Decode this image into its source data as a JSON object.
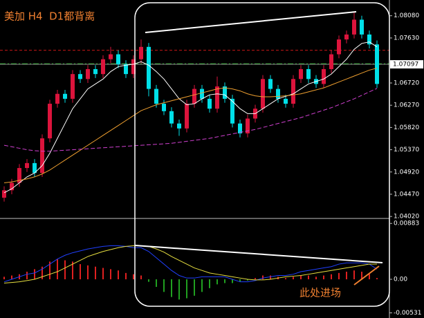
{
  "chart_data": [
    {
      "type": "candlestick",
      "title": "美加 H4  D1都背离",
      "ylim": [
        1.0398,
        1.0837
      ],
      "yticks": [
        {
          "value": 1.0808,
          "label": "1.08080"
        },
        {
          "value": 1.0763,
          "label": "1.07630"
        },
        {
          "value": 1.0672,
          "label": "1.06720"
        },
        {
          "value": 1.0627,
          "label": "1.06270"
        },
        {
          "value": 1.0582,
          "label": "1.05820"
        },
        {
          "value": 1.0537,
          "label": "1.05370"
        },
        {
          "value": 1.0492,
          "label": "1.04920"
        },
        {
          "value": 1.0447,
          "label": "1.04470"
        },
        {
          "value": 1.0402,
          "label": "1.04020"
        }
      ],
      "current_price": 1.07097,
      "levels": [
        {
          "value": 1.0738,
          "color": "#d01818"
        },
        {
          "value": 1.0711,
          "color": "#20a020"
        }
      ],
      "up_color": "#dc143c",
      "down_color": "#00e0e8",
      "candles": {
        "open": [
          1.044,
          1.0455,
          1.047,
          1.05,
          1.051,
          1.049,
          1.056,
          1.063,
          1.065,
          1.064,
          1.069,
          1.068,
          1.07,
          1.069,
          1.072,
          1.073,
          1.071,
          1.069,
          1.072,
          1.0745,
          1.066,
          1.063,
          1.0615,
          1.059,
          1.058,
          1.063,
          1.066,
          1.064,
          1.062,
          1.0665,
          1.064,
          1.059,
          1.057,
          1.06,
          1.062,
          1.068,
          1.066,
          1.064,
          1.063,
          1.068,
          1.07,
          1.068,
          1.067,
          1.07,
          1.073,
          1.076,
          1.077,
          1.08,
          1.077,
          1.075
        ],
        "high": [
          1.0463,
          1.0478,
          1.0508,
          1.0518,
          1.0518,
          1.0568,
          1.0638,
          1.0658,
          1.0658,
          1.0698,
          1.0698,
          1.0708,
          1.0708,
          1.0728,
          1.0745,
          1.0738,
          1.0718,
          1.0728,
          1.076,
          1.0753,
          1.0668,
          1.0638,
          1.0623,
          1.0598,
          1.0638,
          1.0668,
          1.0668,
          1.0648,
          1.0685,
          1.0673,
          1.0648,
          1.0598,
          1.0608,
          1.0628,
          1.0688,
          1.0688,
          1.0668,
          1.0648,
          1.0688,
          1.0708,
          1.0708,
          1.0688,
          1.0708,
          1.0738,
          1.0768,
          1.0778,
          1.0815,
          1.0808,
          1.0778,
          1.0758
        ],
        "low": [
          1.0432,
          1.0447,
          1.0462,
          1.0492,
          1.0482,
          1.0482,
          1.0552,
          1.0622,
          1.0632,
          1.0632,
          1.0672,
          1.0672,
          1.0682,
          1.0682,
          1.0712,
          1.0702,
          1.0682,
          1.0682,
          1.0712,
          1.0645,
          1.0622,
          1.0607,
          1.0582,
          1.0565,
          1.0572,
          1.0622,
          1.0632,
          1.0612,
          1.0612,
          1.0632,
          1.0582,
          1.0562,
          1.0562,
          1.0592,
          1.0612,
          1.0652,
          1.0632,
          1.0622,
          1.0622,
          1.0672,
          1.0672,
          1.0662,
          1.0662,
          1.0692,
          1.0722,
          1.0752,
          1.0762,
          1.0762,
          1.0742,
          1.0662
        ],
        "close": [
          1.0455,
          1.047,
          1.05,
          1.051,
          1.049,
          1.056,
          1.063,
          1.065,
          1.064,
          1.069,
          1.068,
          1.07,
          1.069,
          1.072,
          1.073,
          1.071,
          1.069,
          1.072,
          1.0745,
          1.066,
          1.063,
          1.0615,
          1.059,
          1.058,
          1.063,
          1.066,
          1.064,
          1.062,
          1.0665,
          1.064,
          1.059,
          1.057,
          1.06,
          1.062,
          1.068,
          1.066,
          1.064,
          1.063,
          1.068,
          1.07,
          1.068,
          1.067,
          1.07,
          1.073,
          1.076,
          1.077,
          1.08,
          1.077,
          1.075,
          1.067
        ]
      },
      "series": [
        {
          "color": "#ffffff",
          "dash": false,
          "values": [
            1.045,
            1.0458,
            1.047,
            1.0482,
            1.049,
            1.0505,
            1.053,
            1.056,
            1.059,
            1.062,
            1.064,
            1.066,
            1.067,
            1.068,
            1.0695,
            1.0705,
            1.0708,
            1.071,
            1.0715,
            1.0708,
            1.0695,
            1.068,
            1.066,
            1.064,
            1.0628,
            1.063,
            1.064,
            1.0648,
            1.065,
            1.0648,
            1.0635,
            1.062,
            1.061,
            1.061,
            1.062,
            1.063,
            1.064,
            1.0645,
            1.065,
            1.066,
            1.067,
            1.0675,
            1.068,
            1.069,
            1.0705,
            1.072,
            1.074,
            1.0752,
            1.0755,
            1.0745
          ]
        },
        {
          "color": "#f0a030",
          "dash": false,
          "values": [
            1.047,
            1.0472,
            1.0475,
            1.0478,
            1.0482,
            1.0488,
            1.0496,
            1.0506,
            1.0516,
            1.0526,
            1.0536,
            1.0546,
            1.0556,
            1.0566,
            1.0576,
            1.0586,
            1.0596,
            1.0606,
            1.0616,
            1.0622,
            1.0628,
            1.0632,
            1.0636,
            1.064,
            1.0644,
            1.0648,
            1.0652,
            1.0656,
            1.066,
            1.0662,
            1.066,
            1.0656,
            1.065,
            1.0646,
            1.0644,
            1.0644,
            1.0645,
            1.0646,
            1.0648,
            1.065,
            1.0654,
            1.0658,
            1.0662,
            1.0668,
            1.0674,
            1.068,
            1.0686,
            1.0692,
            1.0698,
            1.0702
          ]
        },
        {
          "color": "#d040d0",
          "dash": true,
          "values": [
            1.0546,
            1.0543,
            1.054,
            1.0537,
            1.0535,
            1.0534,
            1.0534,
            1.0535,
            1.0536,
            1.0537,
            1.0538,
            1.0539,
            1.054,
            1.0541,
            1.0542,
            1.0543,
            1.0544,
            1.0545,
            1.0546,
            1.0547,
            1.0548,
            1.0549,
            1.055,
            1.0552,
            1.0554,
            1.0556,
            1.0558,
            1.056,
            1.0563,
            1.0566,
            1.0569,
            1.0572,
            1.0575,
            1.0578,
            1.0582,
            1.0586,
            1.059,
            1.0594,
            1.0598,
            1.0602,
            1.0607,
            1.0612,
            1.0617,
            1.0622,
            1.0628,
            1.0634,
            1.064,
            1.0647,
            1.0654,
            1.0661
          ]
        }
      ]
    },
    {
      "type": "macd",
      "annotation": "此处进场",
      "ylim": [
        -0.0059,
        0.0094
      ],
      "yticks": [
        0.00883,
        {
          "value": 0,
          "label": "0.00"
        },
        -0.00531
      ],
      "up_color": "#e02020",
      "down_color": "#20a020",
      "histogram": [
        0.0004,
        0.0006,
        0.0008,
        0.0012,
        0.0016,
        0.002,
        0.0028,
        0.0032,
        0.003,
        0.0028,
        0.0024,
        0.0022,
        0.002,
        0.0018,
        0.0016,
        0.0014,
        0.001,
        0.0008,
        0.0006,
        -0.0004,
        -0.0012,
        -0.002,
        -0.0028,
        -0.0032,
        -0.003,
        -0.0026,
        -0.002,
        -0.0014,
        -0.0008,
        -0.0006,
        -0.0006,
        -0.0004,
        -0.0002,
        0.0002,
        0.0006,
        0.0006,
        0.0004,
        0.0002,
        0.0004,
        0.0006,
        0.0006,
        0.0004,
        0.0006,
        0.0008,
        0.001,
        0.0012,
        0.0014,
        0.0012,
        0.0008,
        0.0002
      ],
      "series": [
        {
          "color": "#2040ff",
          "dash": false,
          "values": [
            -0.0004,
            0.0,
            0.0004,
            0.0008,
            0.001,
            0.0016,
            0.0024,
            0.0032,
            0.0038,
            0.0042,
            0.0045,
            0.0048,
            0.005,
            0.0052,
            0.0053,
            0.0053,
            0.0052,
            0.005,
            0.005,
            0.0044,
            0.0034,
            0.0024,
            0.0014,
            0.0006,
            0.0002,
            0.0002,
            0.0004,
            0.0004,
            0.0004,
            0.0004,
            0.0,
            -0.0004,
            -0.0004,
            -0.0002,
            0.0002,
            0.0004,
            0.0006,
            0.0006,
            0.0008,
            0.0012,
            0.0014,
            0.0016,
            0.0018,
            0.002,
            0.0024,
            0.0026,
            0.0026,
            0.0026,
            0.0024,
            0.0016
          ]
        },
        {
          "color": "#e8e040",
          "dash": false,
          "values": [
            -0.0006,
            -0.0005,
            -0.0004,
            -0.0002,
            0.0,
            0.0004,
            0.0008,
            0.0012,
            0.0018,
            0.0024,
            0.003,
            0.0036,
            0.004,
            0.0044,
            0.0047,
            0.005,
            0.0052,
            0.0053,
            0.0053,
            0.0052,
            0.0048,
            0.0043,
            0.0036,
            0.003,
            0.0024,
            0.0018,
            0.0014,
            0.001,
            0.0008,
            0.0006,
            0.0004,
            0.0002,
            0.0,
            -0.0001,
            -0.0001,
            0.0,
            0.0002,
            0.0004,
            0.0005,
            0.0006,
            0.0008,
            0.001,
            0.0012,
            0.0014,
            0.0016,
            0.0018,
            0.002,
            0.0022,
            0.0024,
            0.0024
          ]
        }
      ]
    }
  ]
}
